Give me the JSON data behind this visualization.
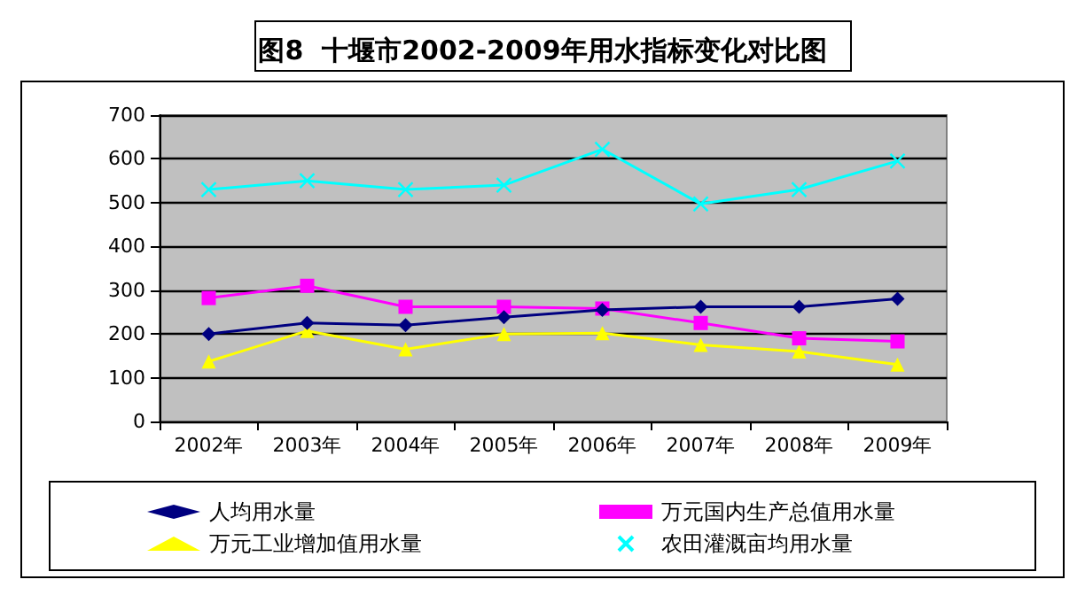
{
  "chart_data": {
    "type": "line",
    "title": "图8  十堰市2002-2009年用水指标变化对比图",
    "categories": [
      "2002年",
      "2003年",
      "2004年",
      "2005年",
      "2006年",
      "2007年",
      "2008年",
      "2009年"
    ],
    "series": [
      {
        "name": "人均用水量",
        "color": "#000080",
        "marker": "diamond",
        "values": [
          200,
          225,
          220,
          238,
          255,
          262,
          262,
          280
        ]
      },
      {
        "name": "万元国内生产总值用水量",
        "color": "#ff00ff",
        "marker": "square",
        "values": [
          282,
          310,
          262,
          262,
          258,
          225,
          190,
          183
        ]
      },
      {
        "name": "万元工业增加值用水量",
        "color": "#ffff00",
        "marker": "triangle",
        "values": [
          137,
          207,
          165,
          200,
          202,
          175,
          160,
          130
        ]
      },
      {
        "name": "农田灌溉亩均用水量",
        "color": "#00ffff",
        "marker": "cross",
        "values": [
          530,
          550,
          530,
          540,
          622,
          497,
          530,
          595
        ]
      }
    ],
    "ylim": [
      0,
      700
    ],
    "yticks": [
      0,
      100,
      200,
      300,
      400,
      500,
      600,
      700
    ],
    "grid": "y",
    "legend": "bottom"
  }
}
